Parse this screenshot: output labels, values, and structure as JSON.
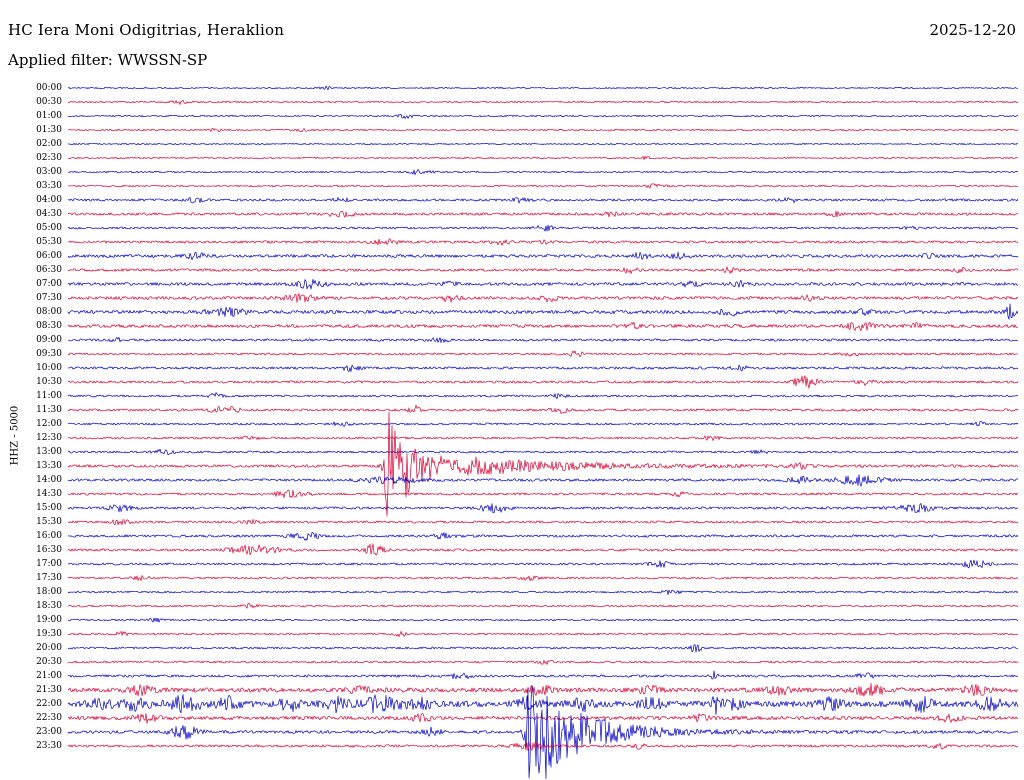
{
  "header": {
    "station": "HC Iera Moni Odigitrias, Heraklion",
    "date": "2025-12-20",
    "filter": "Applied filter: WWSSN-SP"
  },
  "axis": {
    "channel_label": "HHZ - 5000"
  },
  "chart_data": {
    "type": "line",
    "subtype": "helicorder-seismogram",
    "title": "HC Iera Moni Odigitrias, Heraklion",
    "date": "2025-12-20",
    "filter": "WWSSN-SP",
    "channel": "HHZ",
    "scale": 5000,
    "row_interval_minutes": 30,
    "legend_position": "none",
    "grid": false,
    "colors": {
      "blue": "#0000c8",
      "red": "#dc0032"
    },
    "rows": [
      {
        "time": "00:00",
        "color": "blue",
        "noise": 0.7,
        "events": [
          {
            "p": 0.271,
            "a": 1.5,
            "w": 4
          }
        ]
      },
      {
        "time": "00:30",
        "color": "red",
        "noise": 0.8,
        "events": [
          {
            "p": 0.118,
            "a": 2,
            "w": 5
          }
        ]
      },
      {
        "time": "01:00",
        "color": "blue",
        "noise": 0.8,
        "events": [
          {
            "p": 0.355,
            "a": 2,
            "w": 5
          }
        ]
      },
      {
        "time": "01:30",
        "color": "red",
        "noise": 0.8,
        "events": [
          {
            "p": 0.155,
            "a": 1.5,
            "w": 4
          },
          {
            "p": 0.244,
            "a": 1.5,
            "w": 4
          }
        ]
      },
      {
        "time": "02:00",
        "color": "blue",
        "noise": 0.7,
        "events": []
      },
      {
        "time": "02:30",
        "color": "red",
        "noise": 0.7,
        "events": [
          {
            "p": 0.607,
            "a": 1.5,
            "w": 4
          }
        ]
      },
      {
        "time": "03:00",
        "color": "blue",
        "noise": 0.8,
        "events": [
          {
            "p": 0.371,
            "a": 2.5,
            "w": 8
          }
        ]
      },
      {
        "time": "03:30",
        "color": "red",
        "noise": 0.8,
        "events": [
          {
            "p": 0.618,
            "a": 2,
            "w": 6
          }
        ]
      },
      {
        "time": "04:00",
        "color": "blue",
        "noise": 1.2,
        "events": [
          {
            "p": 0.134,
            "a": 2,
            "w": 6
          },
          {
            "p": 0.286,
            "a": 2,
            "w": 6
          },
          {
            "p": 0.476,
            "a": 2,
            "w": 6
          },
          {
            "p": 0.76,
            "a": 2,
            "w": 6
          }
        ]
      },
      {
        "time": "04:30",
        "color": "red",
        "noise": 1.3,
        "events": [
          {
            "p": 0.286,
            "a": 2.5,
            "w": 10
          },
          {
            "p": 0.571,
            "a": 2,
            "w": 6
          },
          {
            "p": 0.807,
            "a": 2,
            "w": 6
          }
        ]
      },
      {
        "time": "05:00",
        "color": "blue",
        "noise": 1.0,
        "events": [
          {
            "p": 0.502,
            "a": 2.5,
            "w": 7
          },
          {
            "p": 0.886,
            "a": 1.5,
            "w": 5
          }
        ]
      },
      {
        "time": "05:30",
        "color": "red",
        "noise": 1.2,
        "events": [
          {
            "p": 0.334,
            "a": 3,
            "w": 8
          },
          {
            "p": 0.455,
            "a": 2.5,
            "w": 6
          },
          {
            "p": 0.502,
            "a": 2,
            "w": 5
          }
        ]
      },
      {
        "time": "06:00",
        "color": "blue",
        "noise": 1.5,
        "events": [
          {
            "p": 0.134,
            "a": 3,
            "w": 7
          },
          {
            "p": 0.602,
            "a": 3.5,
            "w": 6
          },
          {
            "p": 0.644,
            "a": 2.5,
            "w": 6
          },
          {
            "p": 0.907,
            "a": 2,
            "w": 5
          }
        ]
      },
      {
        "time": "06:30",
        "color": "red",
        "noise": 1.3,
        "events": [
          {
            "p": 0.592,
            "a": 2.5,
            "w": 6
          },
          {
            "p": 0.697,
            "a": 2.5,
            "w": 6
          },
          {
            "p": 0.939,
            "a": 2,
            "w": 5
          }
        ]
      },
      {
        "time": "07:00",
        "color": "blue",
        "noise": 1.5,
        "events": [
          {
            "p": 0.255,
            "a": 4,
            "w": 10
          },
          {
            "p": 0.402,
            "a": 2,
            "w": 6
          },
          {
            "p": 0.655,
            "a": 2.5,
            "w": 6
          },
          {
            "p": 0.707,
            "a": 2.5,
            "w": 6
          }
        ]
      },
      {
        "time": "07:30",
        "color": "red",
        "noise": 1.5,
        "events": [
          {
            "p": 0.244,
            "a": 3,
            "w": 12
          },
          {
            "p": 0.402,
            "a": 3,
            "w": 7
          },
          {
            "p": 0.507,
            "a": 3,
            "w": 7
          },
          {
            "p": 0.781,
            "a": 2.5,
            "w": 6
          }
        ]
      },
      {
        "time": "08:00",
        "color": "blue",
        "noise": 1.7,
        "events": [
          {
            "p": 0.165,
            "a": 3.5,
            "w": 14
          },
          {
            "p": 0.697,
            "a": 3,
            "w": 8
          },
          {
            "p": 0.839,
            "a": 2.5,
            "w": 6
          },
          {
            "p": 0.992,
            "a": 7,
            "w": 3
          }
        ]
      },
      {
        "time": "08:30",
        "color": "red",
        "noise": 1.6,
        "events": [
          {
            "p": 0.592,
            "a": 2.5,
            "w": 6
          },
          {
            "p": 0.834,
            "a": 3.5,
            "w": 10
          },
          {
            "p": 0.897,
            "a": 2.5,
            "w": 6
          }
        ]
      },
      {
        "time": "09:00",
        "color": "blue",
        "noise": 1.2,
        "events": [
          {
            "p": 0.055,
            "a": 2,
            "w": 6
          },
          {
            "p": 0.392,
            "a": 2,
            "w": 6
          }
        ]
      },
      {
        "time": "09:30",
        "color": "red",
        "noise": 1.0,
        "events": [
          {
            "p": 0.534,
            "a": 2.5,
            "w": 6
          },
          {
            "p": 0.823,
            "a": 2,
            "w": 5
          }
        ]
      },
      {
        "time": "10:00",
        "color": "blue",
        "noise": 1.2,
        "events": [
          {
            "p": 0.297,
            "a": 2.5,
            "w": 7
          },
          {
            "p": 0.707,
            "a": 2,
            "w": 6
          }
        ]
      },
      {
        "time": "10:30",
        "color": "red",
        "noise": 1.2,
        "events": [
          {
            "p": 0.776,
            "a": 6.5,
            "w": 8
          },
          {
            "p": 0.839,
            "a": 2.5,
            "w": 6
          }
        ]
      },
      {
        "time": "11:00",
        "color": "blue",
        "noise": 1.0,
        "events": [
          {
            "p": 0.155,
            "a": 2.5,
            "w": 6
          },
          {
            "p": 0.518,
            "a": 2,
            "w": 6
          }
        ]
      },
      {
        "time": "11:30",
        "color": "red",
        "noise": 1.2,
        "events": [
          {
            "p": 0.165,
            "a": 3,
            "w": 10
          },
          {
            "p": 0.365,
            "a": 4.5,
            "w": 4
          },
          {
            "p": 0.518,
            "a": 2.5,
            "w": 6
          }
        ]
      },
      {
        "time": "12:00",
        "color": "blue",
        "noise": 1.0,
        "events": [
          {
            "p": 0.286,
            "a": 2.5,
            "w": 6
          },
          {
            "p": 0.96,
            "a": 2,
            "w": 5
          }
        ]
      },
      {
        "time": "12:30",
        "color": "red",
        "noise": 1.0,
        "events": [
          {
            "p": 0.192,
            "a": 2,
            "w": 6
          },
          {
            "p": 0.676,
            "a": 2,
            "w": 6
          }
        ]
      },
      {
        "time": "13:00",
        "color": "blue",
        "noise": 1.0,
        "events": [
          {
            "p": 0.102,
            "a": 2.5,
            "w": 7
          },
          {
            "p": 0.728,
            "a": 2,
            "w": 6
          }
        ]
      },
      {
        "time": "13:30",
        "color": "red",
        "noise": 1.3,
        "events": [
          {
            "p": 0.337,
            "a": 62,
            "t": 14
          },
          {
            "p": 0.355,
            "a": 14,
            "t": 60
          },
          {
            "p": 0.42,
            "a": 5,
            "t": 120
          },
          {
            "p": 0.771,
            "a": 2.5,
            "w": 6
          }
        ]
      },
      {
        "time": "14:00",
        "color": "blue",
        "noise": 1.3,
        "events": [
          {
            "p": 0.339,
            "a": 3,
            "w": 20
          },
          {
            "p": 0.771,
            "a": 3,
            "w": 8
          },
          {
            "p": 0.834,
            "a": 5,
            "w": 15
          }
        ]
      },
      {
        "time": "14:30",
        "color": "red",
        "noise": 1.1,
        "events": [
          {
            "p": 0.234,
            "a": 3,
            "w": 12
          },
          {
            "p": 0.644,
            "a": 2,
            "w": 6
          }
        ]
      },
      {
        "time": "15:00",
        "color": "blue",
        "noise": 1.2,
        "events": [
          {
            "p": 0.055,
            "a": 3,
            "w": 8
          },
          {
            "p": 0.449,
            "a": 4,
            "w": 10
          },
          {
            "p": 0.892,
            "a": 4,
            "w": 12
          }
        ]
      },
      {
        "time": "15:30",
        "color": "red",
        "noise": 1.1,
        "events": [
          {
            "p": 0.055,
            "a": 2.5,
            "w": 7
          },
          {
            "p": 0.192,
            "a": 2,
            "w": 6
          }
        ]
      },
      {
        "time": "16:00",
        "color": "blue",
        "noise": 1.2,
        "events": [
          {
            "p": 0.249,
            "a": 3.5,
            "w": 10
          },
          {
            "p": 0.397,
            "a": 3,
            "w": 7
          }
        ]
      },
      {
        "time": "16:30",
        "color": "red",
        "noise": 1.2,
        "events": [
          {
            "p": 0.197,
            "a": 5,
            "w": 16
          },
          {
            "p": 0.323,
            "a": 7,
            "w": 6
          }
        ]
      },
      {
        "time": "17:00",
        "color": "blue",
        "noise": 1.1,
        "events": [
          {
            "p": 0.623,
            "a": 3,
            "w": 7
          },
          {
            "p": 0.955,
            "a": 4.5,
            "w": 8
          }
        ]
      },
      {
        "time": "17:30",
        "color": "red",
        "noise": 1.0,
        "events": [
          {
            "p": 0.076,
            "a": 2,
            "w": 6
          },
          {
            "p": 0.486,
            "a": 2,
            "w": 6
          }
        ]
      },
      {
        "time": "18:00",
        "color": "blue",
        "noise": 0.9,
        "events": [
          {
            "p": 0.634,
            "a": 3,
            "w": 6
          }
        ]
      },
      {
        "time": "18:30",
        "color": "red",
        "noise": 0.9,
        "events": [
          {
            "p": 0.192,
            "a": 2,
            "w": 5
          }
        ]
      },
      {
        "time": "19:00",
        "color": "blue",
        "noise": 0.9,
        "events": [
          {
            "p": 0.092,
            "a": 2,
            "w": 5
          }
        ]
      },
      {
        "time": "19:30",
        "color": "red",
        "noise": 0.9,
        "events": [
          {
            "p": 0.055,
            "a": 2,
            "w": 5
          },
          {
            "p": 0.349,
            "a": 2,
            "w": 5
          }
        ]
      },
      {
        "time": "20:00",
        "color": "blue",
        "noise": 1.0,
        "events": [
          {
            "p": 0.66,
            "a": 3.5,
            "w": 5
          }
        ]
      },
      {
        "time": "20:30",
        "color": "red",
        "noise": 1.0,
        "events": [
          {
            "p": 0.502,
            "a": 2,
            "w": 5
          }
        ]
      },
      {
        "time": "21:00",
        "color": "blue",
        "noise": 1.2,
        "events": [
          {
            "p": 0.413,
            "a": 3,
            "w": 7
          },
          {
            "p": 0.681,
            "a": 6,
            "w": 2
          },
          {
            "p": 0.839,
            "a": 2.5,
            "w": 6
          }
        ]
      },
      {
        "time": "21:30",
        "color": "red",
        "noise": 2.2,
        "events": [
          {
            "p": 0.076,
            "a": 4,
            "w": 8
          },
          {
            "p": 0.307,
            "a": 3,
            "w": 7
          },
          {
            "p": 0.497,
            "a": 4,
            "w": 8
          },
          {
            "p": 0.613,
            "a": 3.5,
            "w": 7
          },
          {
            "p": 0.749,
            "a": 4,
            "w": 8
          },
          {
            "p": 0.844,
            "a": 5,
            "w": 10
          },
          {
            "p": 0.955,
            "a": 5,
            "w": 8
          }
        ]
      },
      {
        "time": "22:00",
        "color": "blue",
        "noise": 3.0,
        "events": [
          {
            "p": 0.034,
            "a": 5,
            "w": 8
          },
          {
            "p": 0.071,
            "a": 6,
            "w": 8
          },
          {
            "p": 0.123,
            "a": 7,
            "w": 12
          },
          {
            "p": 0.171,
            "a": 6,
            "w": 8
          },
          {
            "p": 0.234,
            "a": 5,
            "w": 8
          },
          {
            "p": 0.281,
            "a": 6,
            "w": 8
          },
          {
            "p": 0.328,
            "a": 7,
            "w": 14
          },
          {
            "p": 0.371,
            "a": 5,
            "w": 8
          },
          {
            "p": 0.486,
            "a": 6,
            "w": 8
          },
          {
            "p": 0.539,
            "a": 6,
            "w": 8
          },
          {
            "p": 0.613,
            "a": 5,
            "w": 8
          },
          {
            "p": 0.681,
            "a": 25,
            "w": 1.5
          },
          {
            "p": 0.697,
            "a": 5,
            "w": 8
          },
          {
            "p": 0.802,
            "a": 5,
            "w": 8
          },
          {
            "p": 0.897,
            "a": 6,
            "w": 8
          },
          {
            "p": 0.971,
            "a": 5,
            "w": 8
          }
        ]
      },
      {
        "time": "22:30",
        "color": "red",
        "noise": 1.8,
        "events": [
          {
            "p": 0.081,
            "a": 4,
            "w": 8
          },
          {
            "p": 0.371,
            "a": 4,
            "w": 7
          },
          {
            "p": 0.665,
            "a": 3,
            "w": 6
          },
          {
            "p": 0.928,
            "a": 4,
            "w": 7
          }
        ]
      },
      {
        "time": "23:00",
        "color": "blue",
        "noise": 1.5,
        "events": [
          {
            "p": 0.123,
            "a": 6,
            "w": 10
          },
          {
            "p": 0.381,
            "a": 4,
            "w": 7
          },
          {
            "p": 0.486,
            "a": 55,
            "t": 32
          },
          {
            "p": 0.502,
            "a": 14,
            "t": 70
          }
        ]
      },
      {
        "time": "23:30",
        "color": "red",
        "noise": 1.2,
        "events": [
          {
            "p": 0.486,
            "a": 4,
            "w": 10
          },
          {
            "p": 0.602,
            "a": 2.5,
            "w": 6
          },
          {
            "p": 0.918,
            "a": 3,
            "w": 6
          }
        ]
      }
    ]
  }
}
